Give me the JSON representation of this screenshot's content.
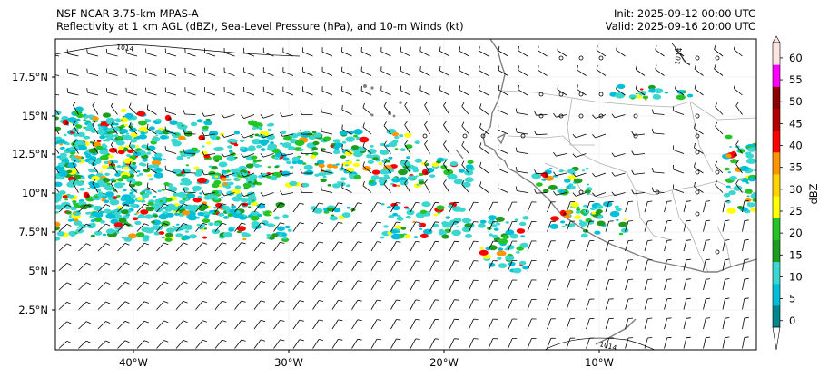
{
  "header": {
    "model_line": "NSF NCAR 3.75-km MPAS-A",
    "field_line": "Reflectivity at 1 km AGL (dBZ), Sea-Level Pressure (hPa), and 10-m Winds (kt)",
    "init_line": "Init: 2025-09-12 00:00 UTC",
    "valid_line": "Valid: 2025-09-16 20:00 UTC"
  },
  "map": {
    "lon_ticks": [
      "40°W",
      "30°W",
      "20°W",
      "10°W"
    ],
    "lat_ticks": [
      "2.5°N",
      "5°N",
      "7.5°N",
      "10°N",
      "12.5°N",
      "15°N",
      "17.5°N"
    ],
    "isobar_labels": [
      "1014",
      "1014",
      "1014"
    ],
    "coastline_color": "#808080",
    "border_color": "#b0b0b0",
    "isobar_color": "#000000"
  },
  "colorbar": {
    "label": "dBZ",
    "ticks": [
      "0",
      "5",
      "10",
      "15",
      "20",
      "25",
      "30",
      "35",
      "40",
      "45",
      "50",
      "55",
      "60"
    ],
    "colors": [
      "#00868b",
      "#00bfd8",
      "#3ad6d0",
      "#1e9c1e",
      "#25c425",
      "#ffff00",
      "#ffd400",
      "#ff9600",
      "#ff0000",
      "#b40000",
      "#8b0000",
      "#ff00ff",
      "#ffe4e1"
    ]
  }
}
